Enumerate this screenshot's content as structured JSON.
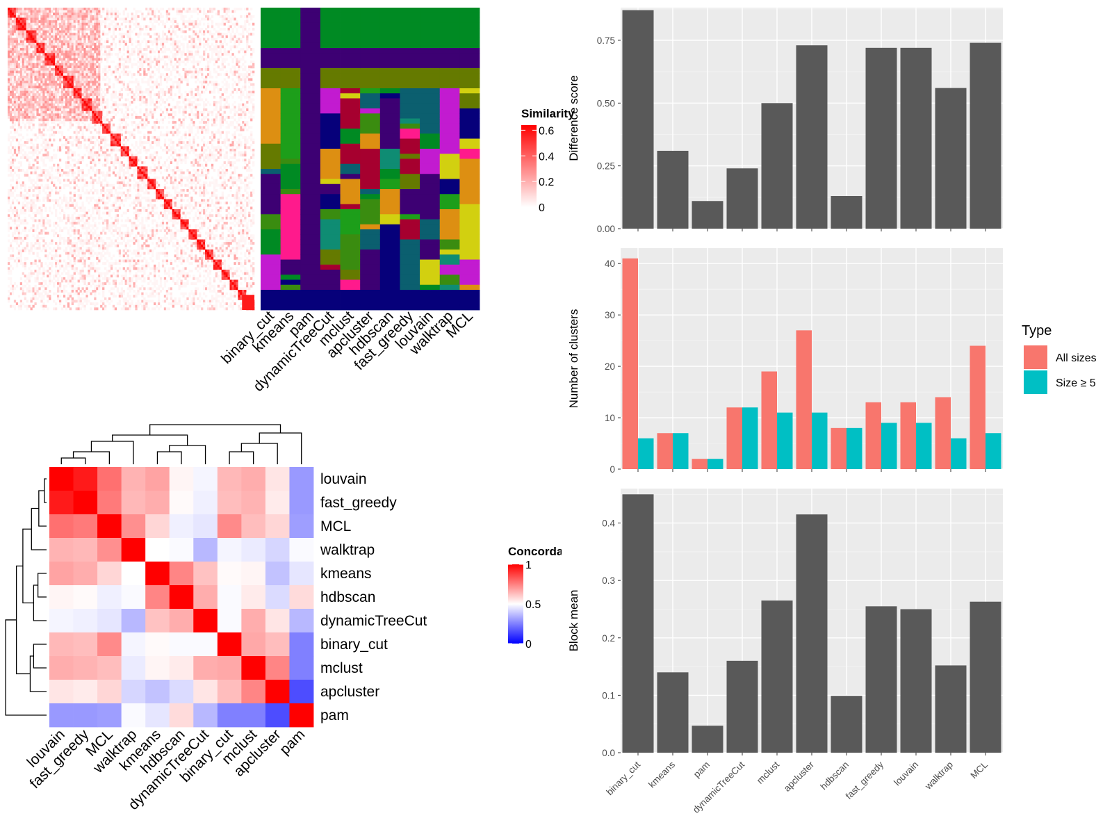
{
  "methods": [
    "binary_cut",
    "kmeans",
    "pam",
    "dynamicTreeCut",
    "mclust",
    "apcluster",
    "hdbscan",
    "fast_greedy",
    "louvain",
    "walktrap",
    "MCL"
  ],
  "similarity_legend": {
    "title": "Similarity",
    "ticks": [
      "0.6",
      "0.4",
      "0.2",
      "0"
    ],
    "colors": [
      "#ffffff",
      "#ff0000"
    ]
  },
  "concordance_legend": {
    "title": "Concordance",
    "ticks": [
      "1",
      "0.5",
      "0"
    ],
    "colors": [
      "#0000ff",
      "#ffffff",
      "#ff0000"
    ]
  },
  "type_legend": {
    "title": "Type",
    "items": [
      {
        "label": "All sizes",
        "color": "#F8766D"
      },
      {
        "label": "Size ≥ 5",
        "color": "#00BFC4"
      }
    ]
  },
  "cluster_palette": [
    "#008a23",
    "#3d0073",
    "#657a00",
    "#0b5f6f",
    "#a6002f",
    "#c21bd0",
    "#dd8f12",
    "#d2d010",
    "#1d9e1a",
    "#ff1a8c",
    "#06007a",
    "#3a8c10",
    "#0f8c73"
  ],
  "concordance_order": [
    "louvain",
    "fast_greedy",
    "MCL",
    "walktrap",
    "kmeans",
    "hdbscan",
    "dynamicTreeCut",
    "binary_cut",
    "mclust",
    "apcluster",
    "pam"
  ],
  "chart_data": [
    {
      "type": "bar",
      "categories": [
        "binary_cut",
        "kmeans",
        "pam",
        "dynamicTreeCut",
        "mclust",
        "apcluster",
        "hdbscan",
        "fast_greedy",
        "louvain",
        "walktrap",
        "MCL"
      ],
      "values": [
        0.87,
        0.31,
        0.11,
        0.24,
        0.5,
        0.73,
        0.13,
        0.72,
        0.72,
        0.56,
        0.74
      ],
      "xlabel": "",
      "ylabel": "Difference score",
      "ylim": [
        0,
        0.88
      ],
      "yticks": [
        "0.00",
        "0.25",
        "0.50",
        "0.75"
      ],
      "grid": true
    },
    {
      "type": "bar",
      "categories": [
        "binary_cut",
        "kmeans",
        "pam",
        "dynamicTreeCut",
        "mclust",
        "apcluster",
        "hdbscan",
        "fast_greedy",
        "louvain",
        "walktrap",
        "MCL"
      ],
      "series": [
        {
          "name": "All sizes",
          "values": [
            41,
            7,
            2,
            12,
            19,
            27,
            8,
            13,
            13,
            14,
            24
          ]
        },
        {
          "name": "Size ≥ 5",
          "values": [
            6,
            7,
            2,
            12,
            11,
            11,
            8,
            9,
            9,
            6,
            7
          ]
        }
      ],
      "xlabel": "",
      "ylabel": "Number of clusters",
      "ylim": [
        0,
        43
      ],
      "yticks": [
        "0",
        "10",
        "20",
        "30",
        "40"
      ],
      "grid": true,
      "legend": "right"
    },
    {
      "type": "bar",
      "categories": [
        "binary_cut",
        "kmeans",
        "pam",
        "dynamicTreeCut",
        "mclust",
        "apcluster",
        "hdbscan",
        "fast_greedy",
        "louvain",
        "walktrap",
        "MCL"
      ],
      "values": [
        0.45,
        0.14,
        0.047,
        0.16,
        0.265,
        0.415,
        0.099,
        0.255,
        0.25,
        0.152,
        0.263
      ],
      "xlabel": "",
      "ylabel": "Block mean",
      "ylim": [
        0,
        0.46
      ],
      "yticks": [
        "0.0",
        "0.1",
        "0.2",
        "0.3",
        "0.4"
      ],
      "grid": true
    },
    {
      "type": "heatmap",
      "rows": [
        "louvain",
        "fast_greedy",
        "MCL",
        "walktrap",
        "kmeans",
        "hdbscan",
        "dynamicTreeCut",
        "binary_cut",
        "mclust",
        "apcluster",
        "pam"
      ],
      "cols": [
        "louvain",
        "fast_greedy",
        "MCL",
        "walktrap",
        "kmeans",
        "hdbscan",
        "dynamicTreeCut",
        "binary_cut",
        "mclust",
        "apcluster",
        "pam"
      ],
      "values": [
        [
          1.0,
          0.95,
          0.78,
          0.65,
          0.68,
          0.52,
          0.48,
          0.64,
          0.66,
          0.55,
          0.3
        ],
        [
          0.95,
          1.0,
          0.76,
          0.64,
          0.66,
          0.51,
          0.47,
          0.63,
          0.65,
          0.54,
          0.3
        ],
        [
          0.78,
          0.76,
          1.0,
          0.72,
          0.58,
          0.47,
          0.45,
          0.73,
          0.63,
          0.58,
          0.31
        ],
        [
          0.65,
          0.64,
          0.72,
          1.0,
          0.5,
          0.49,
          0.36,
          0.48,
          0.46,
          0.42,
          0.49
        ],
        [
          0.68,
          0.66,
          0.58,
          0.5,
          1.0,
          0.74,
          0.62,
          0.51,
          0.52,
          0.38,
          0.45
        ],
        [
          0.52,
          0.51,
          0.47,
          0.49,
          0.74,
          1.0,
          0.66,
          0.49,
          0.54,
          0.43,
          0.57
        ],
        [
          0.48,
          0.47,
          0.45,
          0.36,
          0.62,
          0.66,
          1.0,
          0.49,
          0.66,
          0.55,
          0.36
        ],
        [
          0.64,
          0.63,
          0.73,
          0.48,
          0.51,
          0.49,
          0.49,
          1.0,
          0.67,
          0.63,
          0.25
        ],
        [
          0.66,
          0.65,
          0.63,
          0.46,
          0.52,
          0.54,
          0.66,
          0.67,
          1.0,
          0.74,
          0.25
        ],
        [
          0.55,
          0.54,
          0.58,
          0.42,
          0.38,
          0.43,
          0.55,
          0.63,
          0.74,
          1.0,
          0.15
        ],
        [
          0.3,
          0.3,
          0.31,
          0.49,
          0.45,
          0.57,
          0.36,
          0.25,
          0.25,
          0.15,
          1.0
        ]
      ]
    }
  ]
}
